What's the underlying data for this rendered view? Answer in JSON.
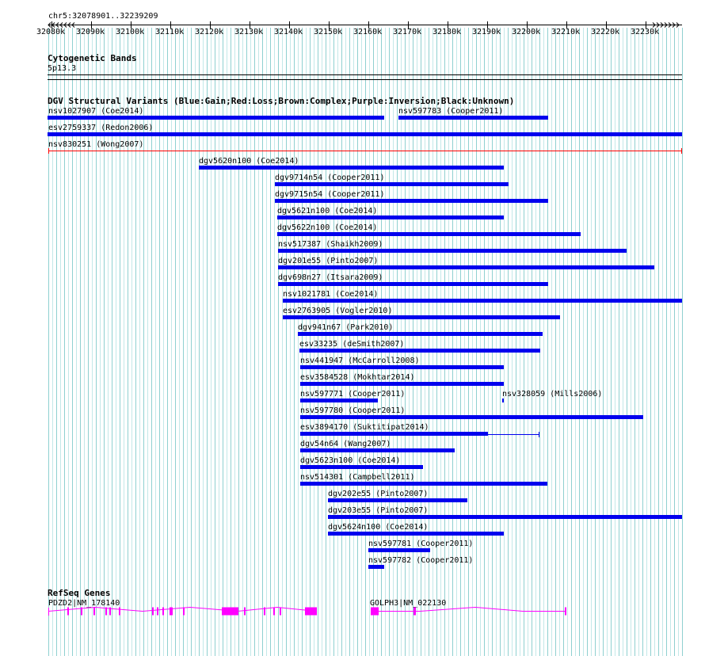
{
  "region": {
    "title": "chr5:32078901..32239209"
  },
  "ruler": {
    "ticks": [
      "32080k",
      "32090k",
      "32100k",
      "32110k",
      "32120k",
      "32130k",
      "32140k",
      "32150k",
      "32160k",
      "32170k",
      "32180k",
      "32190k",
      "32200k",
      "32210k",
      "32220k",
      "32230k"
    ]
  },
  "colors": {
    "gain": "#0000ee",
    "loss": "#ff0000",
    "gene": "#ff00ff",
    "grid": "#a8dede"
  },
  "tracks": {
    "cyto": {
      "title": "Cytogenetic Bands",
      "band_label": "5p13.3"
    },
    "dgv": {
      "title": "DGV Structural Variants (Blue:Gain;Red:Loss;Brown:Complex;Purple:Inversion;Black:Unknown)",
      "variants": [
        {
          "label": "nsv1027907 (Coe2014)"
        },
        {
          "label": "nsv597783 (Cooper2011)"
        },
        {
          "label": "esv2759337 (Redon2006)"
        },
        {
          "label": "nsv830251 (Wong2007)"
        },
        {
          "label": "dgv5620n100 (Coe2014)"
        },
        {
          "label": "dgv9714n54 (Cooper2011)"
        },
        {
          "label": "dgv9715n54 (Cooper2011)"
        },
        {
          "label": "dgv5621n100 (Coe2014)"
        },
        {
          "label": "dgv5622n100 (Coe2014)"
        },
        {
          "label": "nsv517387 (Shaikh2009)"
        },
        {
          "label": "dgv201e55 (Pinto2007)"
        },
        {
          "label": "dgv698n27 (Itsara2009)"
        },
        {
          "label": "nsv1021781 (Coe2014)"
        },
        {
          "label": "esv2763905 (Vogler2010)"
        },
        {
          "label": "dgv941n67 (Park2010)"
        },
        {
          "label": "esv33235 (deSmith2007)"
        },
        {
          "label": "nsv441947 (McCarroll2008)"
        },
        {
          "label": "esv3584528 (Mokhtar2014)"
        },
        {
          "label": "nsv597771 (Cooper2011)"
        },
        {
          "label": "nsv328059 (Mills2006)"
        },
        {
          "label": "nsv597780 (Cooper2011)"
        },
        {
          "label": "esv3894170 (Suktitipat2014)"
        },
        {
          "label": "dgv54n64 (Wang2007)"
        },
        {
          "label": "dgv5623n100 (Coe2014)"
        },
        {
          "label": "nsv514301 (Campbell2011)"
        },
        {
          "label": "dgv202e55 (Pinto2007)"
        },
        {
          "label": "dgv203e55 (Pinto2007)"
        },
        {
          "label": "dgv5624n100 (Coe2014)"
        },
        {
          "label": "nsv597781 (Cooper2011)"
        },
        {
          "label": "nsv597782 (Cooper2011)"
        }
      ]
    },
    "genes": {
      "title": "RefSeq Genes",
      "items": [
        {
          "label": "PDZD2|NM_178140"
        },
        {
          "label": "GOLPH3|NM_022130"
        }
      ]
    }
  }
}
